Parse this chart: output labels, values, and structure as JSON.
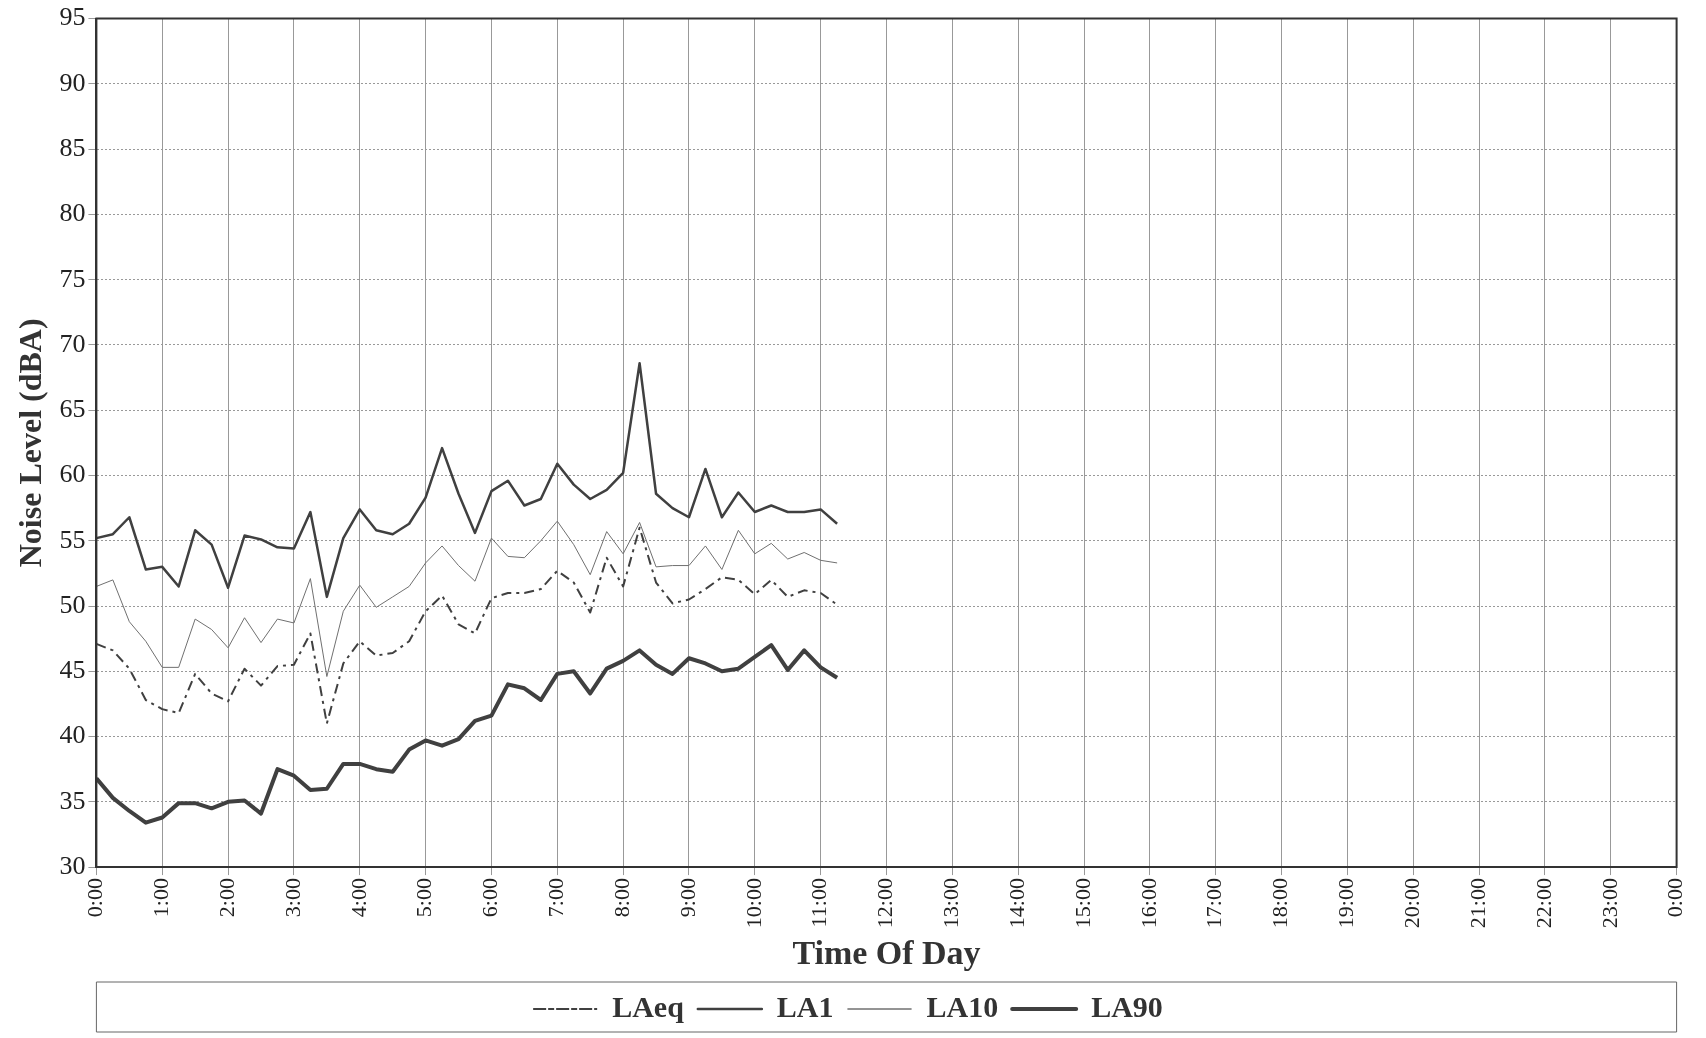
{
  "chart_data": {
    "type": "line",
    "xlabel": "Time Of Day",
    "ylabel": "Noise Level (dBA)",
    "x": [
      0,
      0.25,
      0.5,
      0.75,
      1,
      1.25,
      1.5,
      1.75,
      2,
      2.25,
      2.5,
      2.75,
      3,
      3.25,
      3.5,
      3.75,
      4,
      4.25,
      4.5,
      4.75,
      5,
      5.25,
      5.5,
      5.75,
      6,
      6.25,
      6.5,
      6.75,
      7,
      7.25,
      7.5,
      7.75,
      8,
      8.25,
      8.5,
      8.75,
      9,
      9.25,
      9.5,
      9.75,
      10,
      10.25,
      10.5,
      10.75,
      11,
      11.25
    ],
    "series": [
      {
        "name": "LAeq",
        "color": "#404040",
        "line_style": "dashed",
        "values": [
          47.1,
          46.6,
          45.2,
          42.8,
          42.1,
          41.8,
          44.8,
          43.3,
          42.7,
          45.2,
          43.9,
          45.4,
          45.5,
          47.9,
          41,
          45.6,
          47.3,
          46.2,
          46.4,
          47.3,
          49.6,
          50.8,
          48.6,
          47.9,
          50.6,
          51,
          51,
          51.3,
          52.7,
          51.8,
          49.5,
          53.7,
          51.5,
          56,
          51.8,
          50.2,
          50.5,
          51.3,
          52.2,
          52,
          50.9,
          52,
          50.7,
          51.2,
          51,
          50.1
        ]
      },
      {
        "name": "LA1",
        "color": "#404040",
        "line_style": "solid",
        "values": [
          55.2,
          55.5,
          56.8,
          52.8,
          53,
          51.5,
          55.8,
          54.7,
          51.4,
          55.4,
          55.1,
          54.5,
          54.4,
          57.2,
          50.7,
          55.2,
          57.4,
          55.8,
          55.5,
          56.3,
          58.3,
          62.1,
          58.6,
          55.6,
          58.8,
          59.6,
          57.7,
          58.2,
          60.9,
          59.3,
          58.2,
          58.9,
          60.2,
          68.6,
          58.6,
          57.5,
          56.8,
          60.5,
          56.8,
          58.7,
          57.2,
          57.7,
          57.2,
          57.2,
          57.4,
          56.3
        ]
      },
      {
        "name": "LA10",
        "color": "#707070",
        "line_style": "solid",
        "values": [
          51.5,
          52,
          48.8,
          47.3,
          45.3,
          45.3,
          49,
          48.2,
          46.8,
          49.1,
          47.2,
          49,
          48.7,
          52.1,
          44.6,
          49.6,
          51.6,
          49.9,
          50.7,
          51.5,
          53.3,
          54.6,
          53.1,
          51.9,
          55.2,
          53.8,
          53.7,
          55,
          56.5,
          54.7,
          52.4,
          55.7,
          54,
          56.4,
          53,
          53.1,
          53.1,
          54.6,
          52.8,
          55.8,
          54,
          54.8,
          53.6,
          54.1,
          53.5,
          53.3
        ]
      },
      {
        "name": "LA90",
        "color": "#404040",
        "line_style": "solid",
        "values": [
          36.8,
          35.3,
          34.3,
          33.4,
          33.8,
          34.9,
          34.9,
          34.5,
          35,
          35.1,
          34.1,
          37.5,
          37,
          35.9,
          36,
          37.9,
          37.9,
          37.5,
          37.3,
          39,
          39.7,
          39.3,
          39.8,
          41.2,
          41.6,
          44,
          43.7,
          42.8,
          44.8,
          45,
          43.3,
          45.2,
          45.8,
          46.6,
          45.5,
          44.8,
          46,
          45.6,
          45,
          45.2,
          46.1,
          47,
          45.1,
          46.6,
          45.3,
          44.5
        ]
      }
    ],
    "xlim": [
      0,
      24
    ],
    "xticks": [
      {
        "value": 0,
        "label": "0:00"
      },
      {
        "value": 1,
        "label": "1:00"
      },
      {
        "value": 2,
        "label": "2:00"
      },
      {
        "value": 3,
        "label": "3:00"
      },
      {
        "value": 4,
        "label": "4:00"
      },
      {
        "value": 5,
        "label": "5:00"
      },
      {
        "value": 6,
        "label": "6:00"
      },
      {
        "value": 7,
        "label": "7:00"
      },
      {
        "value": 8,
        "label": "8:00"
      },
      {
        "value": 9,
        "label": "9:00"
      },
      {
        "value": 10,
        "label": "10:00"
      },
      {
        "value": 11,
        "label": "11:00"
      },
      {
        "value": 12,
        "label": "12:00"
      },
      {
        "value": 13,
        "label": "13:00"
      },
      {
        "value": 14,
        "label": "14:00"
      },
      {
        "value": 15,
        "label": "15:00"
      },
      {
        "value": 16,
        "label": "16:00"
      },
      {
        "value": 17,
        "label": "17:00"
      },
      {
        "value": 18,
        "label": "18:00"
      },
      {
        "value": 19,
        "label": "19:00"
      },
      {
        "value": 20,
        "label": "20:00"
      },
      {
        "value": 21,
        "label": "21:00"
      },
      {
        "value": 22,
        "label": "22:00"
      },
      {
        "value": 23,
        "label": "23:00"
      },
      {
        "value": 24,
        "label": "0:00"
      }
    ],
    "ylim": [
      30,
      95
    ],
    "yticks": [
      30,
      35,
      40,
      45,
      50,
      55,
      60,
      65,
      70,
      75,
      80,
      85,
      90,
      95
    ],
    "grid": true,
    "legend": "bottom",
    "marker": "none"
  }
}
